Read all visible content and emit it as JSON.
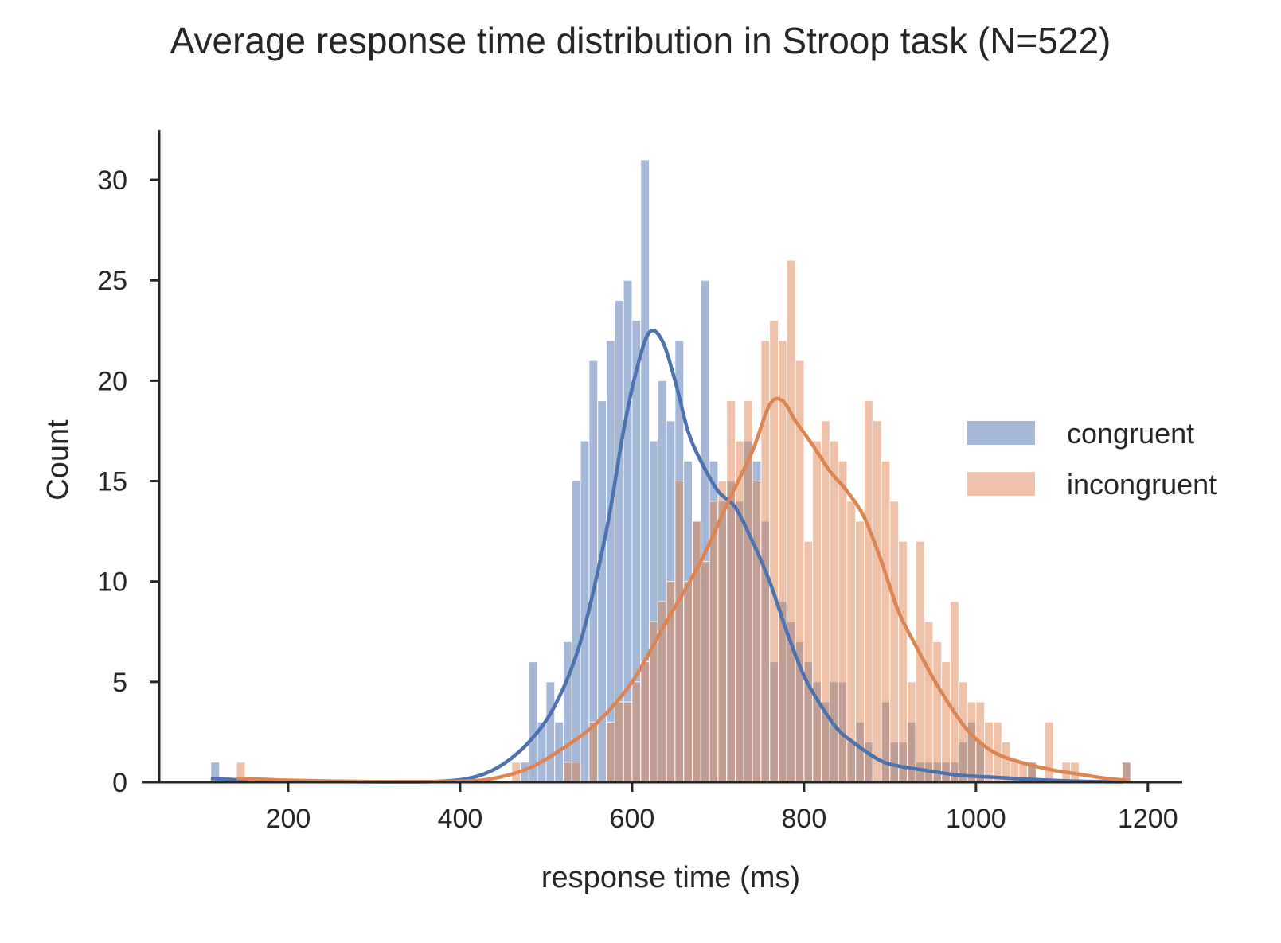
{
  "chart_data": {
    "type": "bar",
    "subtype": "histogram with kde overlay",
    "title": "Average response time distribution in Stroop task (N=522)",
    "xlabel": "response time (ms)",
    "ylabel": "Count",
    "xlim": [
      50,
      1240
    ],
    "ylim": [
      0,
      32.5
    ],
    "xticks": [
      200,
      400,
      600,
      800,
      1000,
      1200
    ],
    "yticks": [
      0,
      5,
      10,
      15,
      20,
      25,
      30
    ],
    "grid": false,
    "legend_position": "right",
    "bin_width": 10,
    "x": [
      110,
      120,
      130,
      140,
      150,
      160,
      170,
      180,
      190,
      200,
      210,
      220,
      230,
      240,
      250,
      260,
      270,
      280,
      290,
      300,
      310,
      320,
      330,
      340,
      350,
      360,
      370,
      380,
      390,
      400,
      410,
      420,
      430,
      440,
      450,
      460,
      470,
      480,
      490,
      500,
      510,
      520,
      530,
      540,
      550,
      560,
      570,
      580,
      590,
      600,
      610,
      620,
      630,
      640,
      650,
      660,
      670,
      680,
      690,
      700,
      710,
      720,
      730,
      740,
      750,
      760,
      770,
      780,
      790,
      800,
      810,
      820,
      830,
      840,
      850,
      860,
      870,
      880,
      890,
      900,
      910,
      920,
      930,
      940,
      950,
      960,
      970,
      980,
      990,
      1000,
      1010,
      1020,
      1030,
      1040,
      1050,
      1060,
      1070,
      1080,
      1090,
      1100,
      1110,
      1120,
      1130,
      1140,
      1150,
      1160,
      1170
    ],
    "series": [
      {
        "name": "congruent",
        "color": "#4c72b0",
        "values": [
          1,
          0,
          0,
          0,
          0,
          0,
          0,
          0,
          0,
          0,
          0,
          0,
          0,
          0,
          0,
          0,
          0,
          0,
          0,
          0,
          0,
          0,
          0,
          0,
          0,
          0,
          0,
          0,
          0,
          0,
          0,
          0,
          0,
          0,
          0,
          0,
          1,
          6,
          3,
          5,
          3,
          7,
          15,
          17,
          21,
          19,
          22,
          24,
          25,
          23,
          31,
          17,
          20,
          18,
          22,
          16,
          13,
          25,
          16,
          14,
          15,
          14,
          17,
          16,
          13,
          6,
          9,
          8,
          7,
          6,
          5,
          4,
          5,
          5,
          2,
          3,
          2,
          0,
          4,
          2,
          2,
          3,
          1,
          1,
          1,
          1,
          1,
          2,
          3,
          2,
          0,
          0,
          0,
          0,
          0,
          1,
          0,
          0,
          0,
          0,
          0,
          0,
          0,
          0,
          0,
          0,
          1
        ],
        "kde": [
          [
            110,
            0.2
          ],
          [
            150,
            0.1
          ],
          [
            200,
            0.05
          ],
          [
            300,
            0.02
          ],
          [
            380,
            0.05
          ],
          [
            420,
            0.3
          ],
          [
            450,
            0.9
          ],
          [
            480,
            2.0
          ],
          [
            510,
            3.8
          ],
          [
            540,
            7.0
          ],
          [
            570,
            12.5
          ],
          [
            590,
            17.5
          ],
          [
            605,
            20.5
          ],
          [
            620,
            22.4
          ],
          [
            635,
            22.0
          ],
          [
            650,
            20.0
          ],
          [
            665,
            17.5
          ],
          [
            680,
            16.0
          ],
          [
            700,
            14.5
          ],
          [
            720,
            13.7
          ],
          [
            740,
            12.0
          ],
          [
            760,
            10.0
          ],
          [
            780,
            7.5
          ],
          [
            800,
            5.3
          ],
          [
            820,
            3.8
          ],
          [
            840,
            2.6
          ],
          [
            860,
            1.9
          ],
          [
            880,
            1.3
          ],
          [
            900,
            0.9
          ],
          [
            940,
            0.6
          ],
          [
            980,
            0.35
          ],
          [
            1020,
            0.25
          ],
          [
            1060,
            0.15
          ],
          [
            1120,
            0.05
          ],
          [
            1170,
            0.02
          ]
        ]
      },
      {
        "name": "incongruent",
        "color": "#dd8452",
        "values": [
          0,
          0,
          0,
          1,
          0,
          0,
          0,
          0,
          0,
          0,
          0,
          0,
          0,
          0,
          0,
          0,
          0,
          0,
          0,
          0,
          0,
          0,
          0,
          0,
          0,
          0,
          0,
          0,
          0,
          0,
          0,
          0,
          0,
          0,
          0,
          1,
          0,
          0,
          0,
          0,
          0,
          1,
          1,
          0,
          3,
          0,
          3,
          4,
          4,
          5,
          6,
          8,
          9,
          10,
          15,
          10,
          13,
          11,
          14,
          15,
          19,
          17,
          19,
          15,
          22,
          23,
          22,
          26,
          21,
          12,
          17,
          18,
          17,
          16,
          14,
          13,
          19,
          18,
          16,
          14,
          12,
          5,
          12,
          8,
          7,
          6,
          9,
          5,
          4,
          4,
          3,
          3,
          2,
          1,
          1,
          1,
          0,
          3,
          0,
          1,
          1,
          0,
          0,
          0,
          0,
          0,
          1
        ],
        "kde": [
          [
            140,
            0.2
          ],
          [
            200,
            0.1
          ],
          [
            300,
            0.03
          ],
          [
            400,
            0.05
          ],
          [
            440,
            0.2
          ],
          [
            480,
            0.7
          ],
          [
            520,
            1.7
          ],
          [
            560,
            3.0
          ],
          [
            600,
            5.0
          ],
          [
            640,
            8.0
          ],
          [
            680,
            11.0
          ],
          [
            710,
            13.8
          ],
          [
            740,
            16.5
          ],
          [
            760,
            18.8
          ],
          [
            775,
            19.0
          ],
          [
            790,
            18.0
          ],
          [
            810,
            16.8
          ],
          [
            830,
            15.5
          ],
          [
            850,
            14.5
          ],
          [
            870,
            13.2
          ],
          [
            890,
            11.0
          ],
          [
            910,
            8.5
          ],
          [
            930,
            6.8
          ],
          [
            950,
            5.2
          ],
          [
            970,
            3.8
          ],
          [
            990,
            2.6
          ],
          [
            1010,
            1.8
          ],
          [
            1030,
            1.3
          ],
          [
            1060,
            0.9
          ],
          [
            1090,
            0.6
          ],
          [
            1120,
            0.4
          ],
          [
            1150,
            0.2
          ],
          [
            1175,
            0.1
          ]
        ]
      }
    ]
  }
}
